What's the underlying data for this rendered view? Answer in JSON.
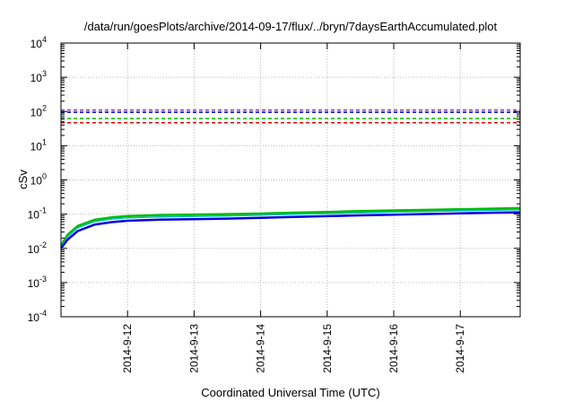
{
  "chart_data": {
    "type": "line",
    "title": "/data/run/goesPlots/archive/2014-09-17/flux/../bryn/7daysEarthAccumulated.plot",
    "xlabel": "Coordinated Universal Time (UTC)",
    "ylabel": "cSv",
    "y_scale": "log",
    "ylim_exponents": [
      -4,
      4
    ],
    "y_tick_base": "10",
    "y_tick_exponents": [
      "-4",
      "-3",
      "-2",
      "-1",
      "0",
      "1",
      "2",
      "3",
      "4"
    ],
    "x_tick_labels": [
      "2014-9-12",
      "2014-9-13",
      "2014-9-14",
      "2014-9-15",
      "2014-9-16",
      "2014-9-17"
    ],
    "x_tick_days": [
      1,
      2,
      3,
      4,
      5,
      6
    ],
    "xlim_days": [
      0.0,
      6.9
    ],
    "grid": true,
    "thresholds": [
      {
        "value": 110,
        "color": "#7f3fbf"
      },
      {
        "value": 95,
        "color": "#0000cc"
      },
      {
        "value": 62,
        "color": "#00bb00"
      },
      {
        "value": 47,
        "color": "#e00000"
      }
    ],
    "series": [
      {
        "color": "#00bb00",
        "width": 2.5,
        "x": [
          0,
          0.1,
          0.25,
          0.5,
          0.75,
          1.0,
          1.5,
          2,
          2.5,
          3,
          3.5,
          4,
          4.5,
          5,
          5.5,
          6,
          6.5,
          6.9
        ],
        "y": [
          0.012,
          0.025,
          0.045,
          0.068,
          0.08,
          0.088,
          0.094,
          0.097,
          0.1,
          0.104,
          0.11,
          0.116,
          0.122,
          0.128,
          0.133,
          0.139,
          0.145,
          0.15
        ]
      },
      {
        "color": "#00bbbb",
        "width": 1.5,
        "x": [
          0,
          0.1,
          0.25,
          0.5,
          0.75,
          1.0,
          1.5,
          2,
          2.5,
          3,
          3.5,
          4,
          4.5,
          5,
          5.5,
          6,
          6.5,
          6.9
        ],
        "y": [
          0.011,
          0.022,
          0.04,
          0.06,
          0.071,
          0.078,
          0.083,
          0.086,
          0.089,
          0.093,
          0.099,
          0.104,
          0.109,
          0.115,
          0.12,
          0.125,
          0.131,
          0.135
        ]
      },
      {
        "color": "#0000dd",
        "width": 2.5,
        "x": [
          0,
          0.1,
          0.25,
          0.5,
          0.75,
          1.0,
          1.5,
          2,
          2.5,
          3,
          3.5,
          4,
          4.5,
          5,
          5.5,
          6,
          6.5,
          6.9
        ],
        "y": [
          0.01,
          0.018,
          0.032,
          0.049,
          0.058,
          0.064,
          0.069,
          0.071,
          0.074,
          0.078,
          0.083,
          0.087,
          0.092,
          0.096,
          0.101,
          0.105,
          0.11,
          0.113
        ]
      }
    ]
  }
}
